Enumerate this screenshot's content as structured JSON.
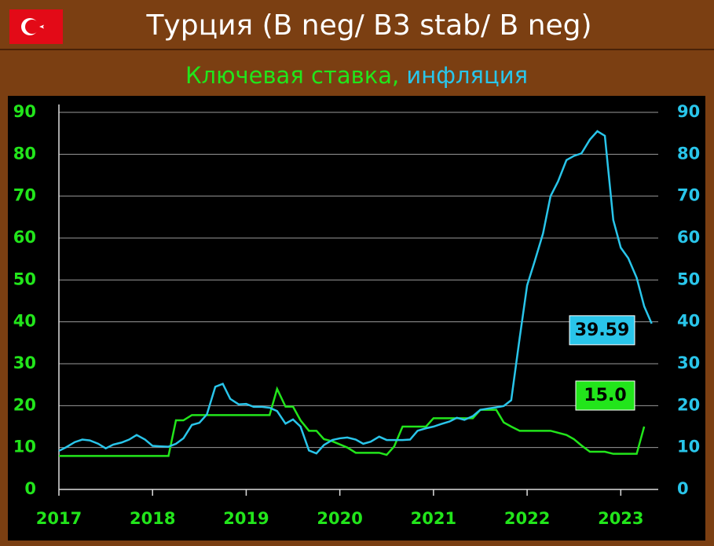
{
  "chart_data": {
    "type": "line",
    "title": "Турция (B neg/ B3 stab/ B neg)",
    "xlim": [
      2017,
      2023.4
    ],
    "xticks": [
      2017,
      2018,
      2019,
      2020,
      2021,
      2022,
      2023
    ],
    "ylim": [
      0,
      90
    ],
    "yticks": [
      0,
      10,
      20,
      30,
      40,
      50,
      60,
      70,
      80,
      90
    ],
    "y2lim": [
      0,
      90
    ],
    "y2ticks": [
      0,
      10,
      20,
      30,
      40,
      50,
      60,
      70,
      80,
      90
    ],
    "grid": true,
    "series": [
      {
        "name": "Ключевая ставка,",
        "color": "#22e51b",
        "x": [
          2017.0,
          2018.17,
          2018.25,
          2018.33,
          2018.42,
          2019.25,
          2019.33,
          2019.42,
          2019.5,
          2019.58,
          2019.67,
          2019.75,
          2019.83,
          2019.92,
          2020.0,
          2020.08,
          2020.17,
          2020.42,
          2020.5,
          2020.58,
          2020.67,
          2020.92,
          2021.0,
          2021.42,
          2021.5,
          2021.67,
          2021.75,
          2021.83,
          2021.92,
          2022.25,
          2022.42,
          2022.5,
          2022.58,
          2022.67,
          2022.83,
          2022.92,
          2023.17,
          2023.25
        ],
        "values": [
          8,
          8,
          16.5,
          16.5,
          17.75,
          17.75,
          24,
          19.75,
          19.75,
          16.5,
          14,
          14,
          12,
          11.5,
          10.75,
          10,
          8.75,
          8.75,
          8.25,
          10.25,
          15,
          15,
          17,
          17,
          19,
          19,
          16,
          15,
          14,
          14,
          13,
          12,
          10.5,
          9,
          9,
          8.5,
          8.5,
          15
        ],
        "value_labels": [
          null,
          null,
          null,
          null,
          null,
          null,
          null,
          null,
          null,
          null,
          null,
          null,
          null,
          null,
          null,
          null,
          null,
          null,
          null,
          null,
          null,
          null,
          null,
          null,
          null,
          null,
          null,
          null,
          null,
          null,
          null,
          null,
          null,
          null,
          null,
          null,
          null,
          "15.0"
        ]
      },
      {
        "name": "инфляция",
        "color": "#29c5ea",
        "axis": "y2",
        "x": [
          2017.0,
          2017.08,
          2017.17,
          2017.25,
          2017.33,
          2017.42,
          2017.5,
          2017.58,
          2017.67,
          2017.75,
          2017.83,
          2017.92,
          2018.0,
          2018.08,
          2018.17,
          2018.25,
          2018.33,
          2018.42,
          2018.5,
          2018.58,
          2018.67,
          2018.75,
          2018.83,
          2018.92,
          2019.0,
          2019.08,
          2019.17,
          2019.25,
          2019.33,
          2019.42,
          2019.5,
          2019.58,
          2019.67,
          2019.75,
          2019.83,
          2019.92,
          2020.0,
          2020.08,
          2020.17,
          2020.25,
          2020.33,
          2020.42,
          2020.5,
          2020.58,
          2020.67,
          2020.75,
          2020.83,
          2020.92,
          2021.0,
          2021.08,
          2021.17,
          2021.25,
          2021.33,
          2021.42,
          2021.5,
          2021.58,
          2021.67,
          2021.75,
          2021.83,
          2021.92,
          2022.0,
          2022.08,
          2022.17,
          2022.25,
          2022.33,
          2022.42,
          2022.5,
          2022.58,
          2022.67,
          2022.75,
          2022.83,
          2022.92,
          2023.0,
          2023.08,
          2023.17,
          2023.25,
          2023.33
        ],
        "values": [
          9.2,
          10.1,
          11.3,
          11.9,
          11.7,
          10.9,
          9.8,
          10.7,
          11.2,
          11.9,
          13,
          11.9,
          10.4,
          10.3,
          10.2,
          10.9,
          12.2,
          15.4,
          15.9,
          17.9,
          24.5,
          25.2,
          21.6,
          20.3,
          20.4,
          19.7,
          19.7,
          19.5,
          18.7,
          15.7,
          16.7,
          15,
          9.3,
          8.6,
          10.6,
          11.8,
          12.2,
          12.4,
          11.9,
          10.9,
          11.4,
          12.6,
          11.8,
          11.8,
          11.8,
          11.9,
          14,
          14.6,
          15,
          15.6,
          16.2,
          17.1,
          16.6,
          17.5,
          19,
          19.3,
          19.6,
          19.9,
          21.3,
          36.1,
          48.7,
          54.4,
          61.1,
          70,
          73.5,
          78.6,
          79.6,
          80.2,
          83.5,
          85.5,
          84.4,
          64.3,
          57.7,
          55.2,
          50.5,
          43.7,
          39.59
        ]
      }
    ]
  }
}
